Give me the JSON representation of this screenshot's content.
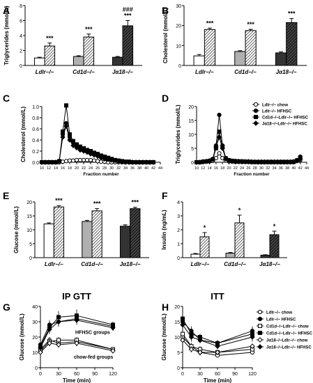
{
  "figure": {
    "panel_letters": [
      "A",
      "B",
      "C",
      "D",
      "E",
      "F",
      "G",
      "H"
    ]
  },
  "chart_data": [
    {
      "panel": "A",
      "type": "bar",
      "ylabel": "Triglycerides (mmol/L)",
      "ylim": [
        0,
        8
      ],
      "yticks": [
        "0",
        "2",
        "4",
        "6",
        "8"
      ],
      "categories": [
        "Ldlr−/−",
        "Cd1d−/−",
        "Jα18−/−"
      ],
      "series": [
        {
          "values": [
            1.0,
            1.2,
            1.1
          ],
          "errors": [
            0.1,
            0.1,
            0.1
          ]
        },
        {
          "values": [
            2.6,
            3.8,
            5.3
          ],
          "errors": [
            0.4,
            0.4,
            0.7
          ]
        }
      ],
      "annotations": [
        {
          "category": 0,
          "series": 1,
          "text": "***"
        },
        {
          "category": 1,
          "series": 1,
          "text": "***"
        },
        {
          "category": 2,
          "series": 1,
          "text": "***"
        },
        {
          "category": 2,
          "series": 1,
          "text": "###",
          "row": 2
        }
      ]
    },
    {
      "panel": "B",
      "type": "bar",
      "ylabel": "Cholesterol (mmol/L)",
      "ylim": [
        0,
        30
      ],
      "yticks": [
        "0",
        "10",
        "20",
        "30"
      ],
      "categories": [
        "Ldlr−/−",
        "Cd1d−/−",
        "Jα18−/−"
      ],
      "series": [
        {
          "values": [
            4.8,
            7.0,
            6.3
          ],
          "errors": [
            0.7,
            0.4,
            0.5
          ]
        },
        {
          "values": [
            18.0,
            17.5,
            21.5
          ],
          "errors": [
            0.7,
            0.6,
            2.0
          ]
        }
      ],
      "annotations": [
        {
          "category": 0,
          "series": 1,
          "text": "***"
        },
        {
          "category": 1,
          "series": 1,
          "text": "***"
        },
        {
          "category": 2,
          "series": 1,
          "text": "***"
        }
      ]
    },
    {
      "panel": "C",
      "type": "line",
      "ylabel": "Cholesterol (mmol/L)",
      "xlabel": "Fraction number",
      "ylim": [
        0,
        1.0
      ],
      "yticks": [
        "0.0",
        "0.2",
        "0.4",
        "0.6",
        "0.8",
        "1.0"
      ],
      "xlim": [
        10,
        44
      ],
      "xticks": [
        "10",
        "12",
        "14",
        "16",
        "18",
        "20",
        "22",
        "24",
        "26",
        "28",
        "30",
        "32",
        "34",
        "36",
        "38",
        "40",
        "42",
        "44"
      ],
      "x": [
        10,
        11,
        12,
        13,
        14,
        15,
        16,
        17,
        18,
        19,
        20,
        21,
        22,
        23,
        24,
        25,
        26,
        27,
        28,
        29,
        30,
        31,
        32,
        33,
        34,
        35,
        36,
        37,
        38,
        39,
        40,
        41,
        42
      ],
      "series": [
        {
          "marker": "open-circle",
          "values": [
            0,
            0,
            0,
            0,
            0,
            0,
            0.01,
            0.02,
            0.03,
            0.03,
            0.04,
            0.04,
            0.04,
            0.04,
            0.04,
            0.03,
            0.02,
            0.01,
            0.01,
            0,
            0,
            0,
            0,
            0,
            0,
            0,
            0,
            0,
            0,
            0,
            0,
            0,
            0
          ]
        },
        {
          "marker": "filled-circle",
          "values": [
            0,
            0,
            0,
            0,
            0,
            0.02,
            0.5,
            0.7,
            0.45,
            0.35,
            0.3,
            0.26,
            0.22,
            0.2,
            0.17,
            0.14,
            0.12,
            0.09,
            0.07,
            0.05,
            0.04,
            0.03,
            0.02,
            0.01,
            0.01,
            0,
            0,
            0,
            0,
            0,
            0,
            0,
            0
          ]
        },
        {
          "marker": "filled-square",
          "values": [
            0,
            0,
            0,
            0,
            0,
            0.02,
            0.55,
            1.02,
            0.5,
            0.38,
            0.32,
            0.28,
            0.25,
            0.22,
            0.2,
            0.17,
            0.15,
            0.12,
            0.1,
            0.08,
            0.06,
            0.04,
            0.03,
            0.02,
            0.01,
            0.01,
            0,
            0,
            0,
            0,
            0,
            0,
            0
          ]
        },
        {
          "marker": "filled-diamond",
          "values": [
            0,
            0,
            0,
            0,
            0,
            0.02,
            0.45,
            0.65,
            0.4,
            0.3,
            0.26,
            0.22,
            0.2,
            0.18,
            0.15,
            0.13,
            0.11,
            0.08,
            0.06,
            0.05,
            0.04,
            0.03,
            0.02,
            0.01,
            0,
            0,
            0,
            0,
            0,
            0,
            0,
            0,
            0
          ]
        }
      ]
    },
    {
      "panel": "D",
      "type": "line",
      "ylabel": "Triglycerides (mmol/L)",
      "xlabel": "Fraction number",
      "ylim": [
        0,
        20
      ],
      "yticks": [
        "0",
        "5",
        "10",
        "15",
        "20"
      ],
      "xlim": [
        10,
        44
      ],
      "xticks": [
        "10",
        "12",
        "14",
        "16",
        "18",
        "20",
        "22",
        "24",
        "26",
        "28",
        "30",
        "32",
        "34",
        "36",
        "38",
        "40",
        "42",
        "44"
      ],
      "x": [
        10,
        11,
        12,
        13,
        14,
        15,
        16,
        17,
        18,
        19,
        20,
        21,
        22,
        23,
        24,
        25,
        26,
        27,
        28,
        29,
        30,
        31,
        32,
        33,
        34,
        35,
        36,
        37,
        38,
        39,
        40,
        41,
        42
      ],
      "series": [
        {
          "name": "Ldlr−/− chow",
          "marker": "open-circle",
          "values": [
            0,
            0,
            0.1,
            0.2,
            0.3,
            0.5,
            1.5,
            3.2,
            1.5,
            0.6,
            0.3,
            0.2,
            0.1,
            0.1,
            0.1,
            0.1,
            0.1,
            0.1,
            0.1,
            0,
            0,
            0,
            0,
            0,
            0,
            0,
            0,
            0,
            0,
            0,
            0,
            0.5,
            0.8
          ]
        },
        {
          "name": "Ldlr−/− HFHSC",
          "marker": "filled-circle",
          "values": [
            0,
            0,
            0.2,
            0.3,
            0.6,
            1.2,
            6.0,
            17.0,
            6.0,
            1.5,
            0.8,
            0.5,
            0.4,
            0.3,
            0.3,
            0.2,
            0.2,
            0.2,
            0.1,
            0.1,
            0.1,
            0.1,
            0.1,
            0.1,
            0.1,
            0.1,
            0.1,
            0.1,
            0.1,
            0.1,
            0.2,
            0.8,
            2.0
          ]
        },
        {
          "name": "Cd1d−/−Ldlr−/− HFHSC",
          "marker": "filled-square",
          "values": [
            0,
            0,
            0.2,
            0.3,
            0.5,
            1.0,
            5.0,
            11.0,
            5.5,
            1.4,
            0.7,
            0.5,
            0.4,
            0.3,
            0.3,
            0.2,
            0.2,
            0.1,
            0.1,
            0.1,
            0.1,
            0.1,
            0.1,
            0.1,
            0.1,
            0.1,
            0.1,
            0.1,
            0.1,
            0.1,
            0.2,
            0.6,
            1.5
          ]
        },
        {
          "name": "Jα18−/−Ldlr−/− HFHSC",
          "marker": "filled-diamond",
          "values": [
            0,
            0,
            0.2,
            0.3,
            0.5,
            1.0,
            5.5,
            9.0,
            5.0,
            1.2,
            0.6,
            0.4,
            0.3,
            0.3,
            0.2,
            0.2,
            0.2,
            0.1,
            0.1,
            0.1,
            0.1,
            0.1,
            0.1,
            0.1,
            0.1,
            0.1,
            0.1,
            0.1,
            0.1,
            0.1,
            0.2,
            0.5,
            1.2
          ]
        }
      ]
    },
    {
      "panel": "E",
      "type": "bar",
      "ylabel": "Glucose (mmol/L)",
      "ylim": [
        0,
        20
      ],
      "yticks": [
        "0",
        "5",
        "10",
        "15",
        "20"
      ],
      "categories": [
        "Ldlr−/−",
        "Cd1d−/−",
        "Jα18−/−"
      ],
      "series": [
        {
          "values": [
            12.1,
            13.0,
            11.3
          ],
          "errors": [
            0.4,
            0.4,
            0.5
          ]
        },
        {
          "values": [
            18.2,
            16.8,
            17.6
          ],
          "errors": [
            0.5,
            0.8,
            0.5
          ]
        }
      ],
      "annotations": [
        {
          "category": 0,
          "series": 1,
          "text": "***"
        },
        {
          "category": 1,
          "series": 1,
          "text": "***"
        },
        {
          "category": 2,
          "series": 1,
          "text": "***"
        }
      ]
    },
    {
      "panel": "F",
      "type": "bar",
      "ylabel": "Insulin (ng/mL)",
      "ylim": [
        0,
        4
      ],
      "yticks": [
        "0",
        "1",
        "2",
        "3",
        "4"
      ],
      "categories": [
        "Ldlr−/−",
        "Cd1d−/−",
        "Jα18−/−"
      ],
      "series": [
        {
          "values": [
            0.25,
            0.32,
            0.18
          ],
          "errors": [
            0.05,
            0.05,
            0.03
          ]
        },
        {
          "values": [
            1.5,
            2.5,
            1.65
          ],
          "errors": [
            0.3,
            0.55,
            0.25
          ]
        }
      ],
      "annotations": [
        {
          "category": 0,
          "series": 1,
          "text": "*"
        },
        {
          "category": 1,
          "series": 1,
          "text": "*"
        },
        {
          "category": 2,
          "series": 1,
          "text": "*"
        }
      ]
    },
    {
      "panel": "G",
      "type": "line",
      "title": "IP GTT",
      "ylabel": "Glucose (mmol/L)",
      "xlabel": "Time (min)",
      "ylim": [
        0,
        40
      ],
      "yticks": [
        "0",
        "10",
        "20",
        "30",
        "40"
      ],
      "xlim": [
        0,
        120
      ],
      "xticks": [
        "0",
        "30",
        "60",
        "90",
        "120"
      ],
      "x": [
        0,
        15,
        30,
        60,
        120
      ],
      "group_labels": [
        "HFHSC groups",
        "chow-fed groups"
      ],
      "series": [
        {
          "marker": "open-circle",
          "values": [
            12,
            18,
            16,
            17,
            12
          ],
          "errors": [
            1,
            2,
            2,
            2,
            1
          ]
        },
        {
          "marker": "filled-circle",
          "values": [
            15,
            28,
            30,
            32,
            27
          ],
          "errors": [
            1,
            3,
            3,
            3,
            2
          ]
        },
        {
          "marker": "open-square",
          "values": [
            11,
            17,
            18,
            18,
            12
          ],
          "errors": [
            1,
            2,
            2,
            2,
            1
          ]
        },
        {
          "marker": "filled-square",
          "values": [
            14,
            26,
            33,
            34,
            28
          ],
          "errors": [
            1,
            3,
            4,
            4,
            2
          ]
        },
        {
          "marker": "open-diamond",
          "values": [
            10,
            16,
            15,
            16,
            11
          ],
          "errors": [
            1,
            2,
            2,
            2,
            1
          ]
        },
        {
          "marker": "filled-diamond",
          "values": [
            13,
            25,
            30,
            31,
            26
          ],
          "errors": [
            1,
            3,
            3,
            3,
            2
          ]
        }
      ]
    },
    {
      "panel": "H",
      "type": "line",
      "title": "ITT",
      "ylabel": "Glucose (mmol/L)",
      "xlabel": "Time (min)",
      "ylim": [
        0,
        20
      ],
      "yticks": [
        "0",
        "5",
        "10",
        "15",
        "20"
      ],
      "xlim": [
        0,
        120
      ],
      "xticks": [
        "0",
        "30",
        "60",
        "90",
        "120"
      ],
      "x": [
        0,
        15,
        30,
        60,
        120
      ],
      "series": [
        {
          "name": "Ldlr−/− chow",
          "marker": "open-circle",
          "values": [
            10,
            7,
            5,
            4,
            5
          ],
          "errors": [
            1,
            1,
            1,
            0.5,
            0.5
          ]
        },
        {
          "name": "Ldlr−/− HFHSC",
          "marker": "filled-circle",
          "values": [
            15,
            12,
            9,
            8,
            12
          ],
          "errors": [
            1.5,
            1.5,
            1,
            1,
            1.5
          ]
        },
        {
          "name": "Cd1d−/−Ldlr−/− chow",
          "marker": "open-square",
          "values": [
            11,
            7,
            6,
            5,
            6
          ],
          "errors": [
            1,
            1,
            1,
            0.5,
            0.5
          ]
        },
        {
          "name": "Cd1d−/−Ldlr−/− HFHSC",
          "marker": "filled-square",
          "values": [
            16,
            11,
            10,
            8,
            11
          ],
          "errors": [
            1.5,
            1.5,
            1,
            1,
            1.5
          ]
        },
        {
          "name": "Jα18−/−Ldlr−/− chow",
          "marker": "open-diamond",
          "values": [
            9,
            6,
            5,
            5,
            7
          ],
          "errors": [
            1,
            1,
            1,
            0.5,
            0.5
          ]
        },
        {
          "name": "Jα18−/−Ldlr−/− HFHSC",
          "marker": "filled-diamond",
          "values": [
            14,
            10,
            9,
            7,
            10
          ],
          "errors": [
            1.5,
            1.5,
            1,
            1,
            1.5
          ]
        }
      ]
    }
  ]
}
